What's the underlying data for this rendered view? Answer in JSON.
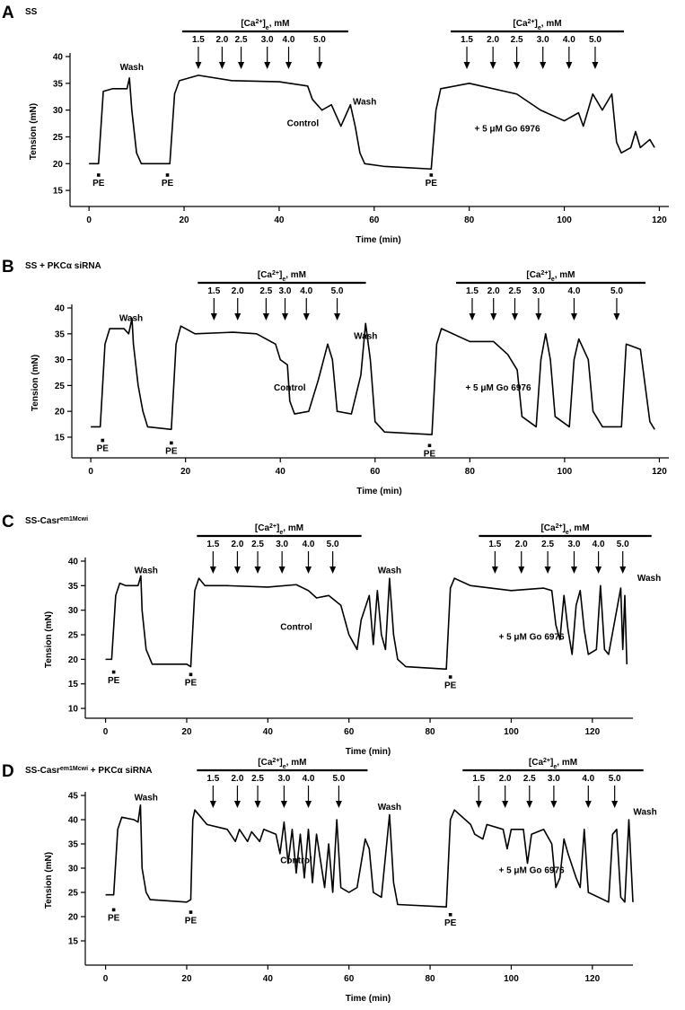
{
  "chart_data": [
    {
      "type": "line",
      "letter": "A",
      "title": [
        {
          "text": "SS"
        }
      ],
      "x_label": "Time (min)",
      "y_label": "Tension (mN)",
      "xlim": [
        -4,
        122
      ],
      "ylim": [
        12,
        40
      ],
      "xticks": [
        0,
        20,
        40,
        60,
        80,
        100,
        120
      ],
      "yticks": [
        15,
        20,
        25,
        30,
        35,
        40
      ],
      "bracket_label": [
        "[Ca",
        "2+",
        "]",
        "e",
        ", mM"
      ],
      "additions": [
        [
          {
            "x": 23,
            "label": "1.5"
          },
          {
            "x": 28,
            "label": "2.0"
          },
          {
            "x": 32,
            "label": "2.5"
          },
          {
            "x": 37.5,
            "label": "3.0"
          },
          {
            "x": 42,
            "label": "4.0"
          },
          {
            "x": 48.5,
            "label": "5.0"
          }
        ],
        [
          {
            "x": 79.5,
            "label": "1.5"
          },
          {
            "x": 85,
            "label": "2.0"
          },
          {
            "x": 90,
            "label": "2.5"
          },
          {
            "x": 95.5,
            "label": "3.0"
          },
          {
            "x": 101,
            "label": "4.0"
          },
          {
            "x": 106.5,
            "label": "5.0"
          }
        ]
      ],
      "annotations": [
        {
          "text": "Wash",
          "x": 9,
          "y": 37.5
        },
        {
          "text": "Wash",
          "x": 58,
          "y": 31
        },
        {
          "text": "PE",
          "x": 2,
          "y": 17.5,
          "marker": true
        },
        {
          "text": "PE",
          "x": 16.5,
          "y": 17.5,
          "marker": true
        },
        {
          "text": "PE",
          "x": 72,
          "y": 17.5,
          "marker": true
        },
        {
          "text": "Control",
          "x": 45,
          "y": 27
        },
        {
          "text": "+ 5 μM Go 6976",
          "x": 88,
          "y": 26
        }
      ],
      "series": [
        {
          "color": "#000000",
          "x": [
            0,
            2,
            3,
            5,
            8,
            8.5,
            9,
            10,
            11,
            16,
            17,
            18,
            19,
            23,
            30,
            40,
            46,
            47,
            49,
            51,
            53,
            55,
            56,
            57,
            58,
            62,
            72,
            73,
            74,
            80,
            90,
            95,
            100,
            103,
            104,
            106,
            108,
            110,
            111,
            112,
            114,
            115,
            116,
            118,
            119
          ],
          "values": [
            20,
            20,
            33.5,
            34,
            34,
            36,
            30,
            22,
            20,
            20,
            20,
            33,
            35.5,
            36.5,
            35.5,
            35.3,
            34.5,
            32,
            30,
            31,
            27,
            31,
            27,
            22,
            20,
            19.5,
            19,
            30,
            34,
            35,
            33,
            30,
            28,
            29.5,
            27,
            33,
            30,
            33,
            24,
            22,
            23,
            26,
            23,
            24.5,
            23
          ]
        }
      ]
    },
    {
      "type": "line",
      "letter": "B",
      "title": [
        {
          "text": "SS + PKCα siRNA"
        }
      ],
      "x_label": "Time (min)",
      "y_label": "Tension (mN)",
      "xlim": [
        -4,
        122
      ],
      "ylim": [
        11,
        40
      ],
      "xticks": [
        0,
        20,
        40,
        60,
        80,
        100,
        120
      ],
      "yticks": [
        15,
        20,
        25,
        30,
        35,
        40
      ],
      "bracket_label": [
        "[Ca",
        "2+",
        "]",
        "e",
        ", mM"
      ],
      "additions": [
        [
          {
            "x": 26,
            "label": "1.5"
          },
          {
            "x": 31,
            "label": "2.0"
          },
          {
            "x": 37,
            "label": "2.5"
          },
          {
            "x": 41,
            "label": "3.0"
          },
          {
            "x": 45.5,
            "label": "4.0"
          },
          {
            "x": 52,
            "label": "5.0"
          }
        ],
        [
          {
            "x": 80.5,
            "label": "1.5"
          },
          {
            "x": 85,
            "label": "2.0"
          },
          {
            "x": 89.5,
            "label": "2.5"
          },
          {
            "x": 94.5,
            "label": "3.0"
          },
          {
            "x": 102,
            "label": "4.0"
          },
          {
            "x": 111,
            "label": "5.0"
          }
        ]
      ],
      "annotations": [
        {
          "text": "Wash",
          "x": 8.5,
          "y": 37.5
        },
        {
          "text": "Wash",
          "x": 58,
          "y": 34
        },
        {
          "text": "PE",
          "x": 2.5,
          "y": 14,
          "marker": true
        },
        {
          "text": "PE",
          "x": 17,
          "y": 13.5,
          "marker": true
        },
        {
          "text": "PE",
          "x": 71.5,
          "y": 13,
          "marker": true
        },
        {
          "text": "Control",
          "x": 42,
          "y": 24
        },
        {
          "text": "+ 5 μM Go 6976",
          "x": 86,
          "y": 24
        }
      ],
      "series": [
        {
          "color": "#000000",
          "x": [
            0,
            2,
            3,
            4,
            7,
            8,
            8.7,
            9,
            10,
            11,
            12,
            17,
            18,
            19,
            22,
            30,
            35,
            37,
            39,
            40,
            41.5,
            42,
            43,
            46,
            48,
            50,
            51,
            52,
            55,
            57,
            58,
            59,
            60,
            62,
            72,
            73,
            74,
            80,
            85,
            88,
            90,
            91,
            94,
            95,
            96,
            97,
            98,
            101,
            102,
            103,
            105,
            106,
            108,
            112,
            113,
            116,
            117,
            118,
            119
          ],
          "values": [
            17,
            17,
            33,
            36,
            36,
            35,
            38,
            33,
            25,
            20,
            17,
            16.5,
            33,
            36.5,
            35,
            35.3,
            35,
            34,
            33,
            30,
            29,
            22,
            19.5,
            20,
            26,
            33,
            30,
            20,
            19.5,
            27,
            37,
            30,
            18,
            16,
            15.5,
            33,
            36,
            33.5,
            33.5,
            31,
            28,
            19,
            17,
            30,
            35,
            30,
            19,
            17,
            30,
            34,
            30,
            20,
            17,
            17,
            33,
            32,
            25,
            18,
            16.5
          ]
        }
      ]
    },
    {
      "type": "line",
      "letter": "C",
      "title": [
        {
          "text": "SS-Casr"
        },
        {
          "text": "em1Mcwi",
          "sup": true
        }
      ],
      "x_label": "Time (min)",
      "y_label": "Tension (mN)",
      "xlim": [
        -5,
        130
      ],
      "ylim": [
        8,
        40
      ],
      "xticks": [
        0,
        20,
        40,
        60,
        80,
        100,
        120
      ],
      "yticks": [
        10,
        15,
        20,
        25,
        30,
        35,
        40
      ],
      "bracket_label": [
        "[Ca",
        "2+",
        "]",
        "e",
        ", mM"
      ],
      "additions": [
        [
          {
            "x": 26.5,
            "label": "1.5"
          },
          {
            "x": 32.5,
            "label": "2.0"
          },
          {
            "x": 37.5,
            "label": "2.5"
          },
          {
            "x": 43.5,
            "label": "3.0"
          },
          {
            "x": 50,
            "label": "4.0"
          },
          {
            "x": 56,
            "label": "5.0"
          }
        ],
        [
          {
            "x": 96,
            "label": "1.5"
          },
          {
            "x": 102.5,
            "label": "2.0"
          },
          {
            "x": 109,
            "label": "2.5"
          },
          {
            "x": 115.5,
            "label": "3.0"
          },
          {
            "x": 121.5,
            "label": "4.0"
          },
          {
            "x": 127.5,
            "label": "5.0"
          }
        ]
      ],
      "annotations": [
        {
          "text": "Wash",
          "x": 10,
          "y": 37.5
        },
        {
          "text": "Wash",
          "x": 70,
          "y": 37.5
        },
        {
          "text": "Wash",
          "x": 134,
          "y": 36
        },
        {
          "text": "PE",
          "x": 2,
          "y": 17,
          "marker": true
        },
        {
          "text": "PE",
          "x": 21,
          "y": 16.5,
          "marker": true
        },
        {
          "text": "PE",
          "x": 85,
          "y": 16,
          "marker": true
        },
        {
          "text": "Control",
          "x": 47,
          "y": 26
        },
        {
          "text": "+ 5 μM Go 6976",
          "x": 105,
          "y": 24
        }
      ],
      "series": [
        {
          "color": "#000000",
          "x": [
            0,
            1.5,
            2.5,
            3.5,
            5,
            8,
            8.7,
            9,
            10,
            11.5,
            20,
            21,
            22,
            23,
            24.5,
            30,
            40,
            47,
            50,
            52,
            55,
            58,
            59,
            60,
            62,
            63,
            65,
            66,
            67,
            68,
            69,
            70,
            71,
            72,
            74,
            84,
            85,
            86,
            90,
            100,
            108,
            110,
            111,
            112,
            113,
            114,
            115,
            116,
            117,
            118,
            119,
            121,
            122,
            123,
            124,
            127,
            127.5,
            128,
            128.5
          ],
          "values": [
            20,
            20,
            33,
            35.5,
            35,
            35,
            37,
            30,
            22,
            19,
            19,
            18.5,
            34,
            36.5,
            35,
            35,
            34.7,
            35.2,
            34,
            32.5,
            33,
            31,
            28,
            25,
            22,
            28,
            33,
            23,
            34,
            25,
            22,
            36.5,
            25,
            20,
            18.5,
            18,
            34.5,
            36.5,
            35,
            34,
            34.5,
            34,
            27,
            24,
            33,
            26,
            21,
            31,
            34,
            26,
            21,
            22,
            35,
            22,
            21,
            34.5,
            22,
            33,
            19
          ]
        }
      ]
    },
    {
      "type": "line",
      "letter": "D",
      "title": [
        {
          "text": "SS-Casr"
        },
        {
          "text": "em1Mcwi",
          "sup": true
        },
        {
          "text": " + PKCα siRNA"
        }
      ],
      "x_label": "Time (min)",
      "y_label": "Tension (mN)",
      "xlim": [
        -5,
        130
      ],
      "ylim": [
        10,
        45
      ],
      "xticks": [
        0,
        20,
        40,
        60,
        80,
        100,
        120
      ],
      "yticks": [
        15,
        20,
        25,
        30,
        35,
        40,
        45
      ],
      "bracket_label": [
        "[Ca",
        "2+",
        "]",
        "e",
        ", mM"
      ],
      "additions": [
        [
          {
            "x": 26.5,
            "label": "1.5"
          },
          {
            "x": 32.5,
            "label": "2.0"
          },
          {
            "x": 37.5,
            "label": "2.5"
          },
          {
            "x": 44,
            "label": "3.0"
          },
          {
            "x": 50,
            "label": "4.0"
          },
          {
            "x": 57.5,
            "label": "5.0"
          }
        ],
        [
          {
            "x": 92,
            "label": "1.5"
          },
          {
            "x": 98.5,
            "label": "2.0"
          },
          {
            "x": 104.5,
            "label": "2.5"
          },
          {
            "x": 110.5,
            "label": "3.0"
          },
          {
            "x": 119,
            "label": "4.0"
          },
          {
            "x": 125.5,
            "label": "5.0"
          }
        ]
      ],
      "annotations": [
        {
          "text": "Wash",
          "x": 10,
          "y": 44
        },
        {
          "text": "Wash",
          "x": 70,
          "y": 42
        },
        {
          "text": "Wash",
          "x": 133,
          "y": 41
        },
        {
          "text": "PE",
          "x": 2,
          "y": 21,
          "marker": true
        },
        {
          "text": "PE",
          "x": 21,
          "y": 20.5,
          "marker": true
        },
        {
          "text": "PE",
          "x": 85,
          "y": 20,
          "marker": true
        },
        {
          "text": "Control",
          "x": 47,
          "y": 31
        },
        {
          "text": "+ 5 μM Go 6976",
          "x": 105,
          "y": 29
        }
      ],
      "series": [
        {
          "color": "#000000",
          "x": [
            0,
            2,
            3,
            4,
            7,
            8,
            8.6,
            9,
            10,
            11,
            20,
            21,
            21.5,
            22,
            25,
            30,
            32,
            33,
            35,
            36,
            38,
            39,
            42,
            43,
            44,
            45,
            46,
            47,
            48,
            49,
            50,
            51,
            52,
            54,
            55,
            56,
            57,
            58,
            60,
            62,
            64,
            65,
            66,
            68,
            70,
            71,
            72,
            84,
            85,
            86,
            90,
            91,
            93,
            94,
            98,
            99,
            100,
            103,
            104,
            105,
            108,
            110,
            111,
            112,
            113,
            114,
            116,
            117,
            118,
            119,
            124,
            125,
            126,
            127,
            128,
            129,
            130
          ],
          "values": [
            24.5,
            24.5,
            38,
            40.5,
            40,
            39.5,
            43,
            30,
            25,
            23.5,
            23,
            23.5,
            40,
            42,
            39,
            38,
            35.5,
            38,
            35.5,
            37.5,
            35.5,
            38,
            37,
            33,
            39.5,
            31,
            38,
            29,
            37,
            28,
            38,
            27,
            37,
            26,
            35,
            25,
            40,
            26,
            25,
            26,
            36,
            34,
            25,
            24,
            41,
            27,
            22.5,
            22,
            40,
            42,
            39,
            37,
            36,
            39,
            38,
            34,
            38,
            38,
            31,
            37,
            38,
            35,
            26,
            28,
            36,
            33,
            28,
            26,
            38,
            25,
            23,
            37,
            38,
            24,
            23,
            40,
            23
          ]
        }
      ]
    }
  ]
}
